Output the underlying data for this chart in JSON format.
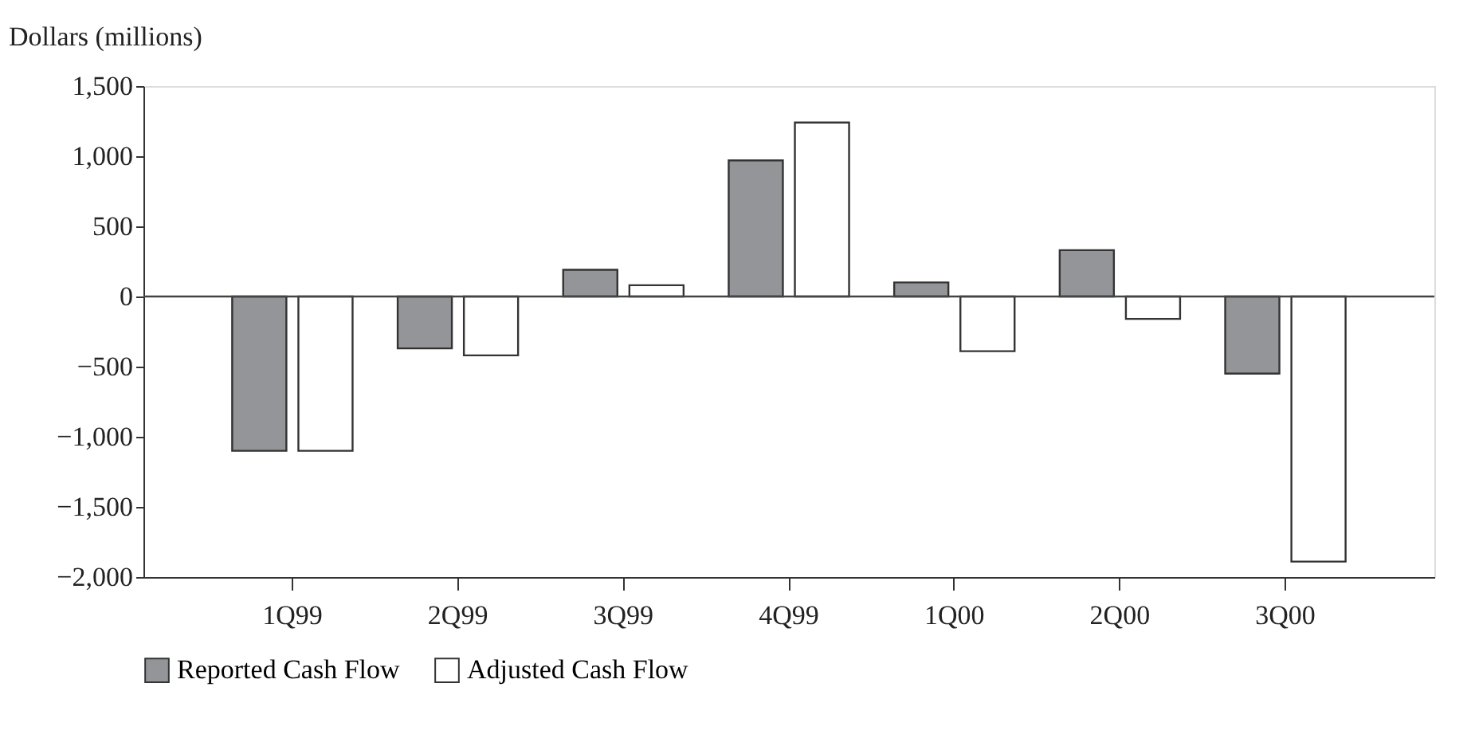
{
  "chart_data": {
    "type": "bar",
    "ylabel": "Dollars (millions)",
    "categories": [
      "1Q99",
      "2Q99",
      "3Q99",
      "4Q99",
      "1Q00",
      "2Q00",
      "3Q00"
    ],
    "series": [
      {
        "name": "Reported Cash Flow",
        "color": "#939598",
        "values": [
          -1100,
          -370,
          190,
          970,
          100,
          330,
          -550
        ]
      },
      {
        "name": "Adjusted Cash Flow",
        "color": "#ffffff",
        "values": [
          -1100,
          -420,
          80,
          1240,
          -390,
          -160,
          -1890
        ]
      }
    ],
    "ylim": [
      -2000,
      1500
    ],
    "yticks": [
      {
        "value": -2000,
        "label": "−2,000"
      },
      {
        "value": -1500,
        "label": "−1,500"
      },
      {
        "value": -1000,
        "label": "−1,000"
      },
      {
        "value": -500,
        "label": "−500"
      },
      0,
      500,
      {
        "value": 1000,
        "label": "1,000"
      },
      {
        "value": 1500,
        "label": "1,500"
      }
    ],
    "ref_lines": [
      {
        "axis": "y",
        "value": 0
      }
    ],
    "grid": false,
    "legend": "bottom"
  }
}
